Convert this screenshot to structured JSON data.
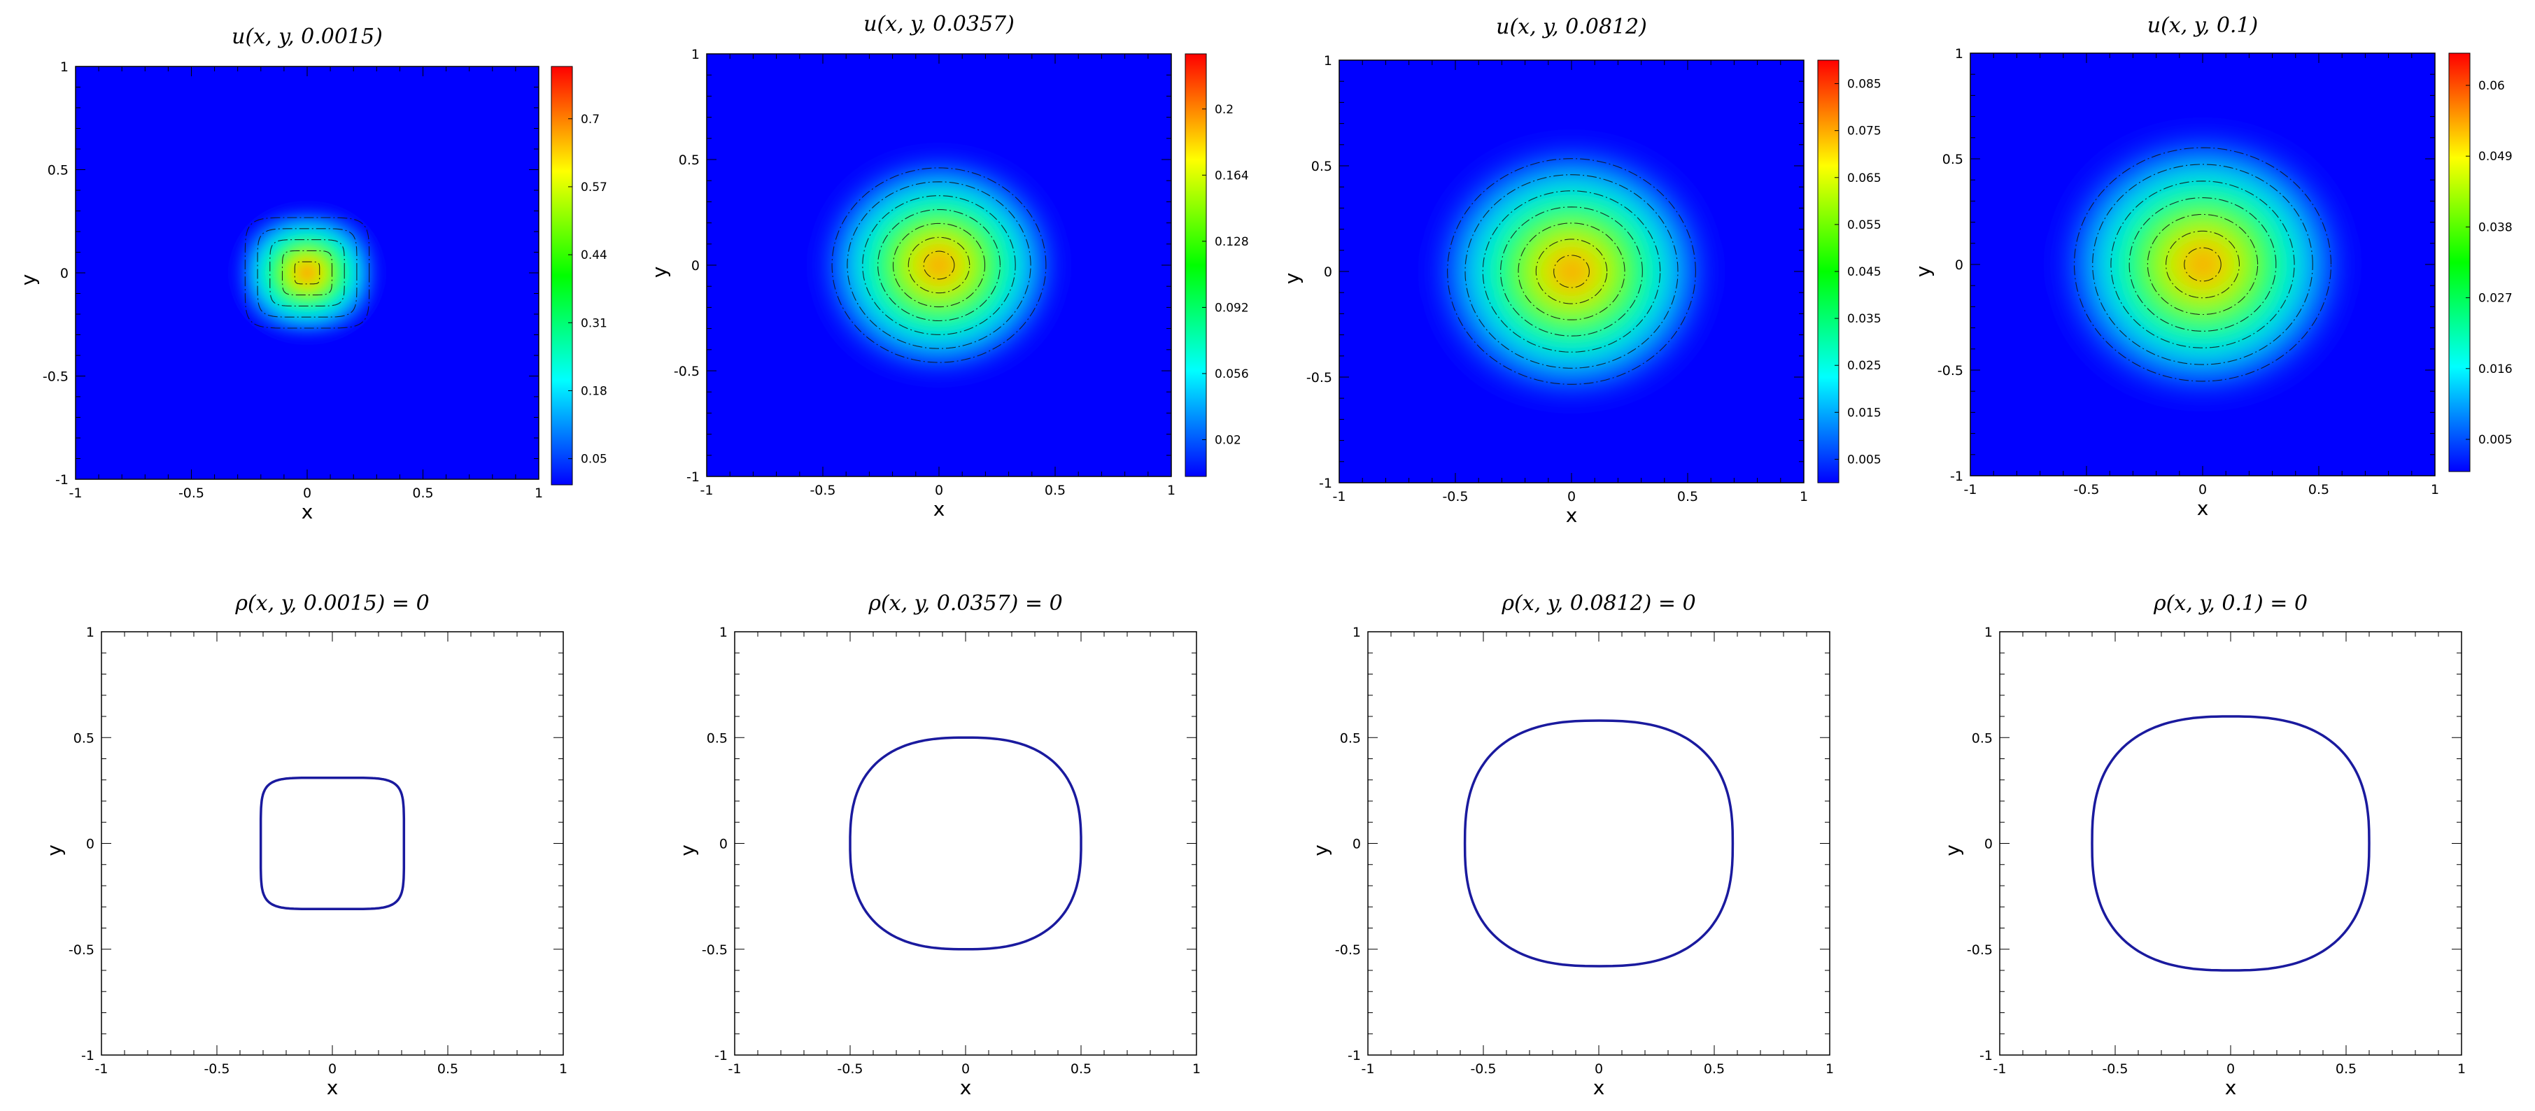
{
  "chart_data": [
    {
      "type": "heatmap",
      "title": "u(x, y, 0.0015)",
      "xlabel": "x",
      "ylabel": "y",
      "xlim": [
        -1,
        1
      ],
      "ylim": [
        -1,
        1
      ],
      "xticks": [
        "-1",
        "-0.5",
        "0",
        "0.5",
        "1"
      ],
      "yticks": [
        "-1",
        "-0.5",
        "0",
        "0.5",
        "1"
      ],
      "colorbar": {
        "ticks": [
          "0.05",
          "0.18",
          "0.31",
          "0.44",
          "0.57",
          "0.7"
        ],
        "range": [
          0,
          0.8
        ]
      },
      "field": {
        "shape": "rounded-square",
        "radius": 0.3,
        "peak": 0.8
      },
      "contours": "black dash-dot",
      "colormap": [
        "#0000ff",
        "#00ffff",
        "#00ff00",
        "#ffff00",
        "#ff0000"
      ]
    },
    {
      "type": "heatmap",
      "title": "u(x, y, 0.0357)",
      "xlabel": "x",
      "ylabel": "y",
      "xlim": [
        -1,
        1
      ],
      "ylim": [
        -1,
        1
      ],
      "xticks": [
        "-1",
        "-0.5",
        "0",
        "0.5",
        "1"
      ],
      "yticks": [
        "-1",
        "-0.5",
        "0",
        "0.5",
        "1"
      ],
      "colorbar": {
        "ticks": [
          "0.02",
          "0.056",
          "0.092",
          "0.128",
          "0.164",
          "0.2"
        ],
        "range": [
          0,
          0.23
        ]
      },
      "field": {
        "shape": "disk",
        "radius": 0.5,
        "peak": 0.23
      },
      "contours": "black dash-dot",
      "colormap": [
        "#0000ff",
        "#00ffff",
        "#00ff00",
        "#ffff00",
        "#ff0000"
      ]
    },
    {
      "type": "heatmap",
      "title": "u(x, y, 0.0812)",
      "xlabel": "x",
      "ylabel": "y",
      "xlim": [
        -1,
        1
      ],
      "ylim": [
        -1,
        1
      ],
      "xticks": [
        "-1",
        "-0.5",
        "0",
        "0.5",
        "1"
      ],
      "yticks": [
        "-1",
        "-0.5",
        "0",
        "0.5",
        "1"
      ],
      "colorbar": {
        "ticks": [
          "0.005",
          "0.015",
          "0.025",
          "0.035",
          "0.045",
          "0.055",
          "0.065",
          "0.075",
          "0.085"
        ],
        "range": [
          0,
          0.09
        ]
      },
      "field": {
        "shape": "disk",
        "radius": 0.58,
        "peak": 0.09
      },
      "contours": "black dash-dot",
      "colormap": [
        "#0000ff",
        "#00ffff",
        "#00ff00",
        "#ffff00",
        "#ff0000"
      ]
    },
    {
      "type": "heatmap",
      "title": "u(x, y, 0.1)",
      "xlabel": "x",
      "ylabel": "y",
      "xlim": [
        -1,
        1
      ],
      "ylim": [
        -1,
        1
      ],
      "xticks": [
        "-1",
        "-0.5",
        "0",
        "0.5",
        "1"
      ],
      "yticks": [
        "-1",
        "-0.5",
        "0",
        "0.5",
        "1"
      ],
      "colorbar": {
        "ticks": [
          "0.005",
          "0.016",
          "0.027",
          "0.038",
          "0.049",
          "0.06"
        ],
        "range": [
          0,
          0.065
        ]
      },
      "field": {
        "shape": "disk",
        "radius": 0.6,
        "peak": 0.065
      },
      "contours": "black dash-dot",
      "colormap": [
        "#0000ff",
        "#00ffff",
        "#00ff00",
        "#ffff00",
        "#ff0000"
      ]
    },
    {
      "type": "line",
      "title": "ρ(x, y, 0.0015) = 0",
      "xlabel": "x",
      "ylabel": "y",
      "xlim": [
        -1,
        1
      ],
      "ylim": [
        -1,
        1
      ],
      "xticks": [
        "-1",
        "-0.5",
        "0",
        "0.5",
        "1"
      ],
      "yticks": [
        "-1",
        "-0.5",
        "0",
        "0.5",
        "1"
      ],
      "curve": {
        "shape": "rounded-square",
        "half_width": 0.31,
        "color": "#1a1a9e"
      }
    },
    {
      "type": "line",
      "title": "ρ(x, y, 0.0357) = 0",
      "xlabel": "x",
      "ylabel": "y",
      "xlim": [
        -1,
        1
      ],
      "ylim": [
        -1,
        1
      ],
      "xticks": [
        "-1",
        "-0.5",
        "0",
        "0.5",
        "1"
      ],
      "yticks": [
        "-1",
        "-0.5",
        "0",
        "0.5",
        "1"
      ],
      "curve": {
        "shape": "rounded-disk",
        "half_width": 0.5,
        "color": "#1a1a9e"
      }
    },
    {
      "type": "line",
      "title": "ρ(x, y, 0.0812) = 0",
      "xlabel": "x",
      "ylabel": "y",
      "xlim": [
        -1,
        1
      ],
      "ylim": [
        -1,
        1
      ],
      "xticks": [
        "-1",
        "-0.5",
        "0",
        "0.5",
        "1"
      ],
      "yticks": [
        "-1",
        "-0.5",
        "0",
        "0.5",
        "1"
      ],
      "curve": {
        "shape": "rounded-disk",
        "half_width": 0.58,
        "color": "#1a1a9e"
      }
    },
    {
      "type": "line",
      "title": "ρ(x, y, 0.1) = 0",
      "xlabel": "x",
      "ylabel": "y",
      "xlim": [
        -1,
        1
      ],
      "ylim": [
        -1,
        1
      ],
      "xticks": [
        "-1",
        "-0.5",
        "0",
        "0.5",
        "1"
      ],
      "yticks": [
        "-1",
        "-0.5",
        "0",
        "0.5",
        "1"
      ],
      "curve": {
        "shape": "rounded-disk",
        "half_width": 0.6,
        "color": "#1a1a9e"
      }
    }
  ]
}
